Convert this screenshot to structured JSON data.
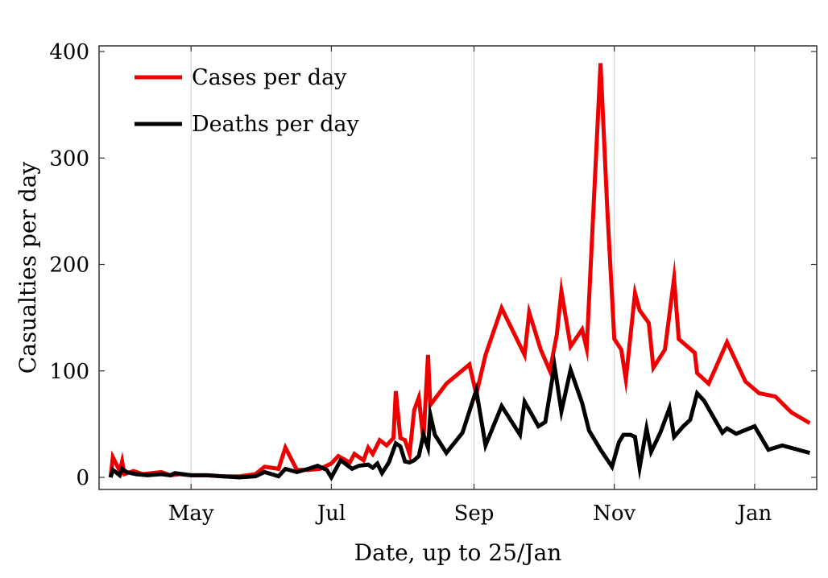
{
  "chart_data": {
    "type": "line",
    "xlabel": "Date, up to 25/Jan",
    "ylabel": "Casualties per day",
    "ylim": [
      0,
      400
    ],
    "yticks": [
      0,
      100,
      200,
      300,
      400
    ],
    "xlim": [
      "2020-03-22",
      "2021-01-28"
    ],
    "xticks": [
      {
        "date": "2020-05-01",
        "label": "May"
      },
      {
        "date": "2020-07-01",
        "label": "Jul"
      },
      {
        "date": "2020-09-01",
        "label": "Sep"
      },
      {
        "date": "2020-11-01",
        "label": "Nov"
      },
      {
        "date": "2021-01-01",
        "label": "Jan"
      }
    ],
    "grid": {
      "x": true,
      "y": false
    },
    "legend": {
      "position": "top-left"
    },
    "series": [
      {
        "name": "Cases per day",
        "color": "#ee0000",
        "points": [
          [
            "2020-03-27",
            0
          ],
          [
            "2020-03-28",
            19
          ],
          [
            "2020-03-31",
            6
          ],
          [
            "2020-04-01",
            15
          ],
          [
            "2020-04-02",
            3
          ],
          [
            "2020-04-06",
            6
          ],
          [
            "2020-04-10",
            3
          ],
          [
            "2020-04-18",
            5
          ],
          [
            "2020-04-22",
            2
          ],
          [
            "2020-04-26",
            3
          ],
          [
            "2020-05-01",
            2
          ],
          [
            "2020-05-08",
            2
          ],
          [
            "2020-05-15",
            1
          ],
          [
            "2020-05-22",
            1
          ],
          [
            "2020-05-29",
            3
          ],
          [
            "2020-06-02",
            10
          ],
          [
            "2020-06-08",
            8
          ],
          [
            "2020-06-11",
            28
          ],
          [
            "2020-06-16",
            7
          ],
          [
            "2020-06-21",
            7
          ],
          [
            "2020-06-26",
            8
          ],
          [
            "2020-07-01",
            13
          ],
          [
            "2020-07-04",
            20
          ],
          [
            "2020-07-09",
            14
          ],
          [
            "2020-07-11",
            22
          ],
          [
            "2020-07-15",
            16
          ],
          [
            "2020-07-17",
            28
          ],
          [
            "2020-07-19",
            22
          ],
          [
            "2020-07-22",
            35
          ],
          [
            "2020-07-25",
            30
          ],
          [
            "2020-07-28",
            37
          ],
          [
            "2020-07-29",
            81
          ],
          [
            "2020-07-31",
            37
          ],
          [
            "2020-08-02",
            35
          ],
          [
            "2020-08-04",
            22
          ],
          [
            "2020-08-06",
            63
          ],
          [
            "2020-08-08",
            75
          ],
          [
            "2020-08-10",
            35
          ],
          [
            "2020-08-12",
            115
          ],
          [
            "2020-08-13",
            68
          ],
          [
            "2020-08-20",
            88
          ],
          [
            "2020-08-30",
            106
          ],
          [
            "2020-09-02",
            78
          ],
          [
            "2020-09-06",
            115
          ],
          [
            "2020-09-13",
            159
          ],
          [
            "2020-09-23",
            115
          ],
          [
            "2020-09-25",
            155
          ],
          [
            "2020-09-30",
            120
          ],
          [
            "2020-10-04",
            100
          ],
          [
            "2020-10-07",
            134
          ],
          [
            "2020-10-09",
            175
          ],
          [
            "2020-10-13",
            123
          ],
          [
            "2020-10-18",
            139
          ],
          [
            "2020-10-20",
            121
          ],
          [
            "2020-10-26",
            389
          ],
          [
            "2020-10-29",
            250
          ],
          [
            "2020-11-01",
            130
          ],
          [
            "2020-11-04",
            120
          ],
          [
            "2020-11-06",
            92
          ],
          [
            "2020-11-10",
            173
          ],
          [
            "2020-11-12",
            157
          ],
          [
            "2020-11-16",
            145
          ],
          [
            "2020-11-18",
            103
          ],
          [
            "2020-11-23",
            120
          ],
          [
            "2020-11-27",
            187
          ],
          [
            "2020-11-29",
            130
          ],
          [
            "2020-12-06",
            117
          ],
          [
            "2020-12-07",
            98
          ],
          [
            "2020-12-12",
            88
          ],
          [
            "2020-12-20",
            127
          ],
          [
            "2020-12-28",
            90
          ],
          [
            "2021-01-03",
            79
          ],
          [
            "2021-01-10",
            76
          ],
          [
            "2021-01-17",
            61
          ],
          [
            "2021-01-25",
            51
          ]
        ]
      },
      {
        "name": "Deaths per day",
        "color": "#000000",
        "points": [
          [
            "2020-03-27",
            0
          ],
          [
            "2020-03-28",
            7
          ],
          [
            "2020-03-31",
            2
          ],
          [
            "2020-04-01",
            8
          ],
          [
            "2020-04-03",
            5
          ],
          [
            "2020-04-07",
            3
          ],
          [
            "2020-04-12",
            2
          ],
          [
            "2020-04-18",
            3
          ],
          [
            "2020-04-22",
            2
          ],
          [
            "2020-04-24",
            4
          ],
          [
            "2020-05-01",
            2
          ],
          [
            "2020-05-08",
            2
          ],
          [
            "2020-05-15",
            1
          ],
          [
            "2020-05-22",
            0
          ],
          [
            "2020-05-29",
            1
          ],
          [
            "2020-06-02",
            5
          ],
          [
            "2020-06-08",
            1
          ],
          [
            "2020-06-11",
            8
          ],
          [
            "2020-06-16",
            5
          ],
          [
            "2020-06-21",
            8
          ],
          [
            "2020-06-25",
            11
          ],
          [
            "2020-06-29",
            7
          ],
          [
            "2020-07-01",
            0
          ],
          [
            "2020-07-05",
            16
          ],
          [
            "2020-07-10",
            8
          ],
          [
            "2020-07-13",
            11
          ],
          [
            "2020-07-17",
            12
          ],
          [
            "2020-07-19",
            9
          ],
          [
            "2020-07-21",
            13
          ],
          [
            "2020-07-23",
            4
          ],
          [
            "2020-07-26",
            14
          ],
          [
            "2020-07-29",
            32
          ],
          [
            "2020-07-31",
            29
          ],
          [
            "2020-08-02",
            15
          ],
          [
            "2020-08-04",
            14
          ],
          [
            "2020-08-06",
            16
          ],
          [
            "2020-08-08",
            20
          ],
          [
            "2020-08-10",
            40
          ],
          [
            "2020-08-12",
            28
          ],
          [
            "2020-08-13",
            59
          ],
          [
            "2020-08-15",
            40
          ],
          [
            "2020-08-20",
            23
          ],
          [
            "2020-08-27",
            42
          ],
          [
            "2020-09-02",
            82
          ],
          [
            "2020-09-06",
            30
          ],
          [
            "2020-09-13",
            67
          ],
          [
            "2020-09-21",
            40
          ],
          [
            "2020-09-23",
            71
          ],
          [
            "2020-09-29",
            48
          ],
          [
            "2020-10-02",
            52
          ],
          [
            "2020-10-06",
            105
          ],
          [
            "2020-10-09",
            62
          ],
          [
            "2020-10-13",
            101
          ],
          [
            "2020-10-18",
            70
          ],
          [
            "2020-10-21",
            44
          ],
          [
            "2020-10-26",
            26
          ],
          [
            "2020-10-31",
            10
          ],
          [
            "2020-11-03",
            33
          ],
          [
            "2020-11-05",
            40
          ],
          [
            "2020-11-08",
            40
          ],
          [
            "2020-11-10",
            38
          ],
          [
            "2020-11-12",
            9
          ],
          [
            "2020-11-15",
            46
          ],
          [
            "2020-11-17",
            24
          ],
          [
            "2020-11-21",
            42
          ],
          [
            "2020-11-25",
            65
          ],
          [
            "2020-11-27",
            38
          ],
          [
            "2020-12-01",
            48
          ],
          [
            "2020-12-04",
            54
          ],
          [
            "2020-12-07",
            79
          ],
          [
            "2020-12-10",
            72
          ],
          [
            "2020-12-18",
            42
          ],
          [
            "2020-12-20",
            46
          ],
          [
            "2020-12-24",
            41
          ],
          [
            "2021-01-01",
            48
          ],
          [
            "2021-01-07",
            26
          ],
          [
            "2021-01-13",
            30
          ],
          [
            "2021-01-25",
            23
          ]
        ]
      }
    ]
  }
}
